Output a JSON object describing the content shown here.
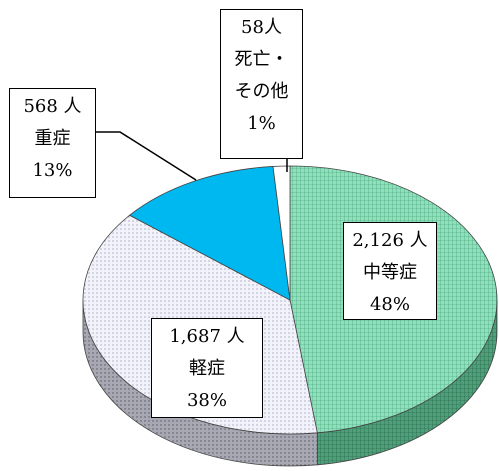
{
  "chart_data": {
    "type": "pie3d",
    "categories": [
      "中等症",
      "軽症",
      "重症",
      "死亡・その他"
    ],
    "values": [
      2126,
      1687,
      568,
      58
    ],
    "value_labels": [
      "2,126 人",
      "1,687 人",
      "568 人",
      "58人"
    ],
    "percents": [
      48,
      38,
      13,
      1
    ],
    "percent_labels": [
      "48%",
      "38%",
      "13%",
      "1%"
    ],
    "colors": [
      "#8fe0bc",
      "#ececf6",
      "#00b8f0",
      "#ffffff"
    ]
  }
}
